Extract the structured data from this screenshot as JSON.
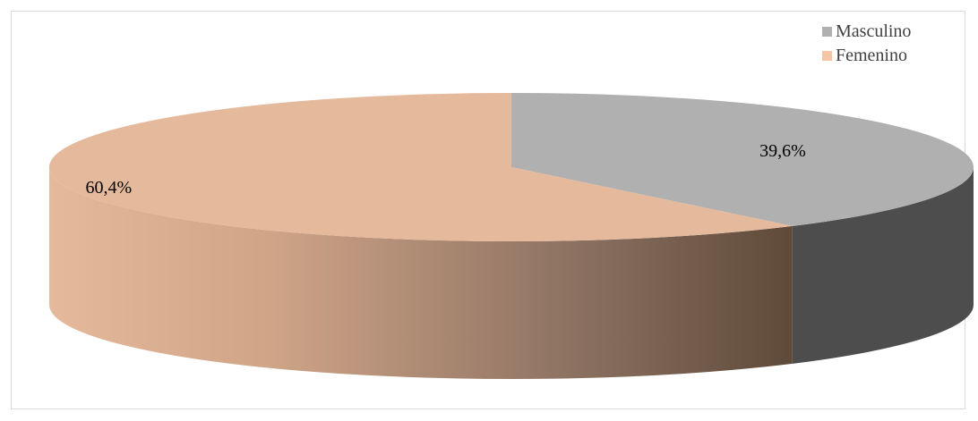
{
  "chart_data": {
    "type": "pie",
    "style": "3d",
    "categories": [
      "Masculino",
      "Femenino"
    ],
    "values": [
      39.6,
      60.4
    ],
    "labels": [
      "39,6%",
      "60,4%"
    ],
    "colors": [
      "#b0b0b0",
      "#e5b99b"
    ],
    "side_colors": [
      "#4d4d4d",
      "#5f4a3a"
    ],
    "legend_position": "top-right",
    "title": ""
  },
  "legend": {
    "items": [
      {
        "label": "Masculino",
        "color": "#b0b0b0"
      },
      {
        "label": "Femenino",
        "color": "#f5c6a6"
      }
    ]
  }
}
